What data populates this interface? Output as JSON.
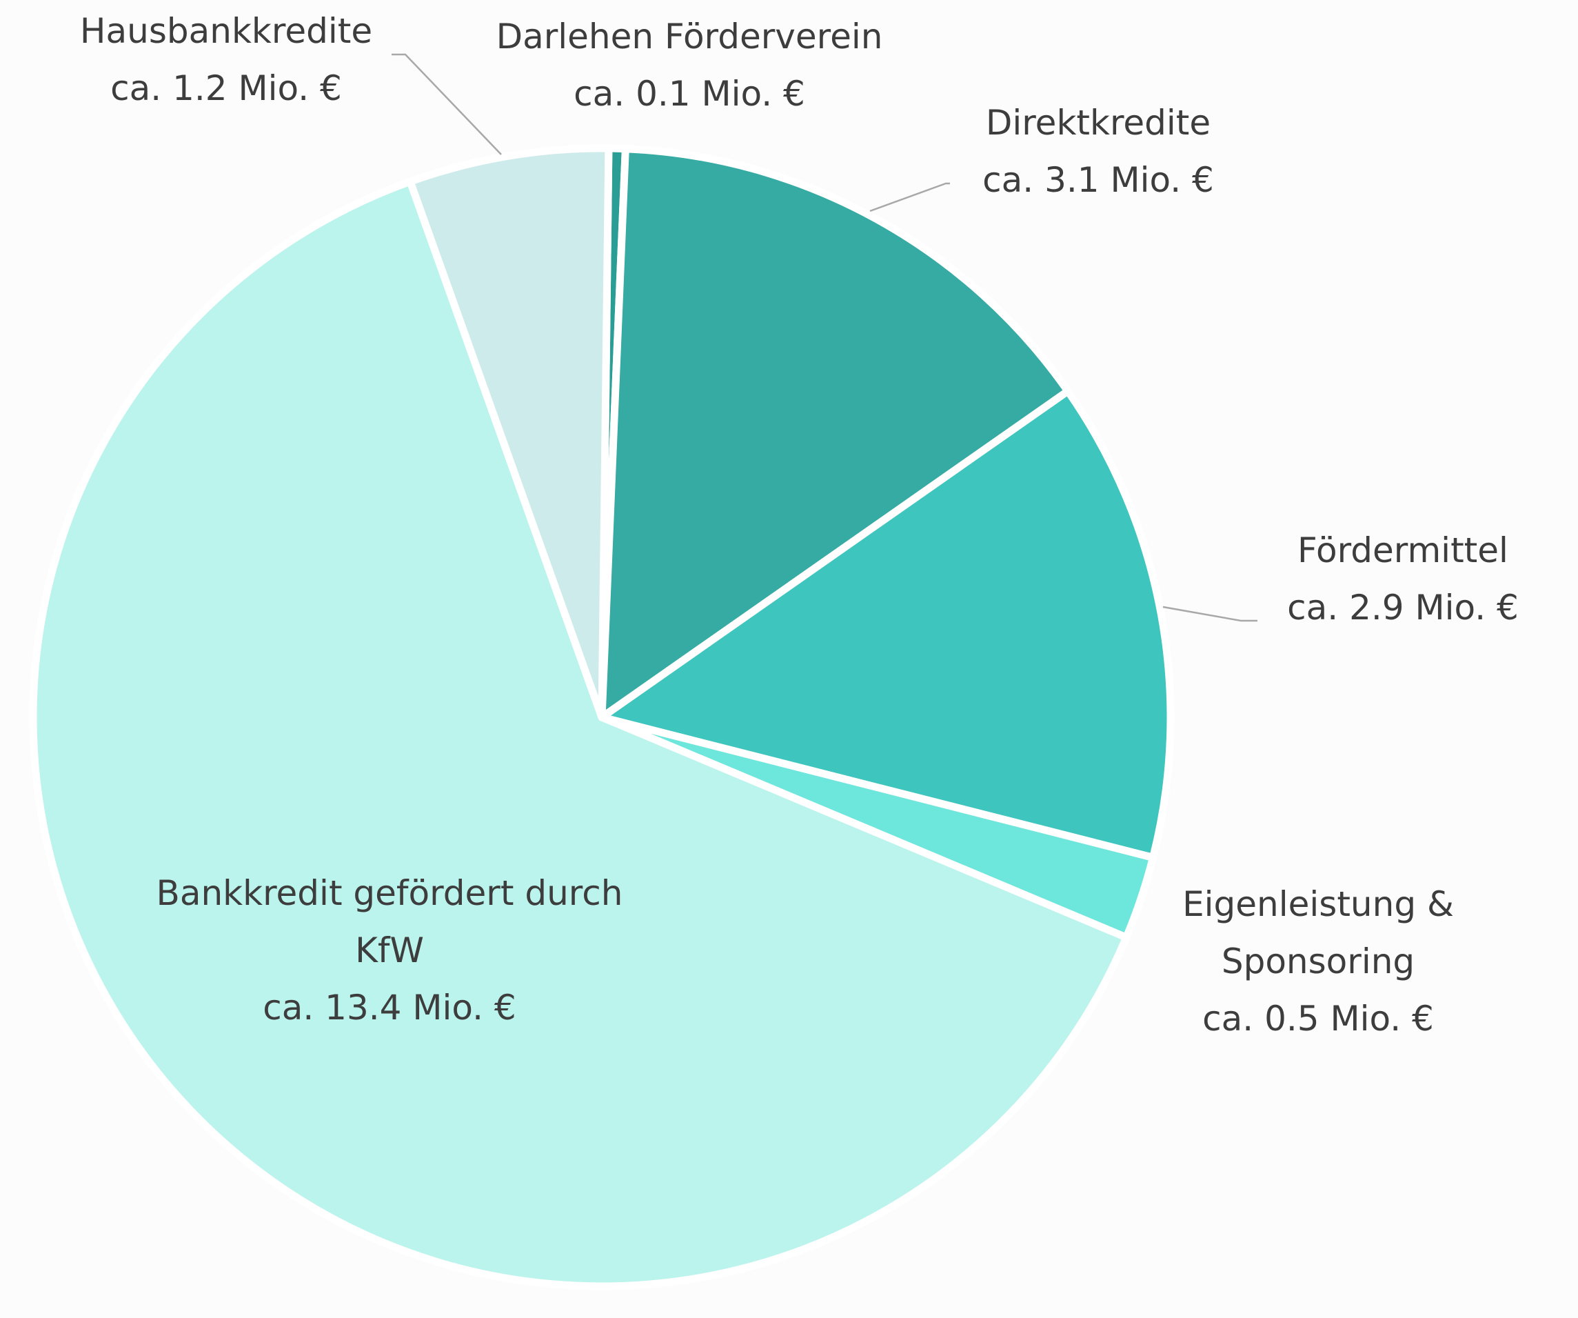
{
  "chart_data": {
    "type": "pie",
    "title": "",
    "unit": "Mio. €",
    "slices": [
      {
        "label": "Darlehen Förderverein",
        "value_text": "ca. 0.1 Mio. €",
        "value": 0.1,
        "color": "#2a9d95"
      },
      {
        "label": "Direktkredite",
        "value_text": "ca. 3.1 Mio. €",
        "value": 3.1,
        "color": "#35aba3"
      },
      {
        "label": "Fördermittel",
        "value_text": "ca. 2.9 Mio. €",
        "value": 2.9,
        "color": "#3ec6be"
      },
      {
        "label": "Eigenleistung & Sponsoring",
        "value_text": "ca. 0.5 Mio. €",
        "value": 0.5,
        "color": "#6de6dc"
      },
      {
        "label": "Bankkredit gefördert durch KfW",
        "value_text": "ca. 13.4 Mio. €",
        "value": 13.4,
        "color": "#bbf4ed"
      },
      {
        "label": "Hausbankkredite",
        "value_text": "ca. 1.2 Mio. €",
        "value": 1.2,
        "color": "#cdebea"
      }
    ]
  }
}
